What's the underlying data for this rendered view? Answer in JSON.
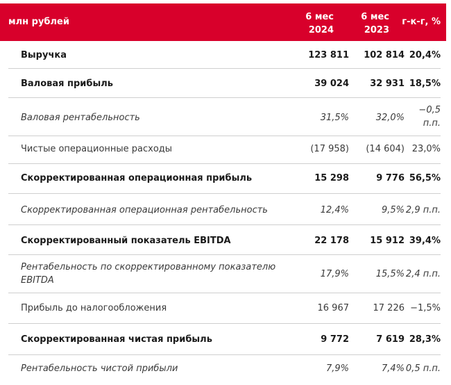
{
  "header": {
    "title": "млн рублей",
    "col1_line1": "6 мес",
    "col1_line2": "2024",
    "col2_line1": "6 мес",
    "col2_line2": "2023",
    "col3": "г-к-г, %"
  },
  "rows": [
    {
      "label": "Выручка",
      "v1": "123 811",
      "v2": "102 814",
      "v3": "20,4%"
    },
    {
      "label": "Валовая прибыль",
      "v1": "39 024",
      "v2": "32 931",
      "v3": "18,5%"
    },
    {
      "label": "Валовая рентабельность",
      "v1": "31,5%",
      "v2": "32,0%",
      "v3a": "−0,5",
      "v3b": "п.п."
    },
    {
      "label": "Чистые операционные расходы",
      "v1": "(17 958)",
      "v2": "(14 604)",
      "v3": "23,0%"
    },
    {
      "label": "Скорректированная операционная прибыль",
      "v1": "15 298",
      "v2": "9 776",
      "v3": "56,5%"
    },
    {
      "label": "Скорректированная операционная рентабельность",
      "v1": "12,4%",
      "v2": "9,5%",
      "v3": "2,9 п.п."
    },
    {
      "label": "Скорректированный показатель EBITDA",
      "v1": "22 178",
      "v2": "15 912",
      "v3": "39,4%"
    },
    {
      "label_line1": "Рентабельность по скорректированному показателю",
      "label_line2": "EBITDA",
      "v1": "17,9%",
      "v2": "15,5%",
      "v3": "2,4 п.п."
    },
    {
      "label": "Прибыль до налогообложения",
      "v1": "16 967",
      "v2": "17 226",
      "v3": "−1,5%"
    },
    {
      "label": "Скорректированная чистая прибыль",
      "v1": "9 772",
      "v2": "7 619",
      "v3": "28,3%"
    },
    {
      "label": "Рентабельность чистой прибыли",
      "v1": "7,9%",
      "v2": "7,4%",
      "v3": "0,5 п.п."
    }
  ]
}
